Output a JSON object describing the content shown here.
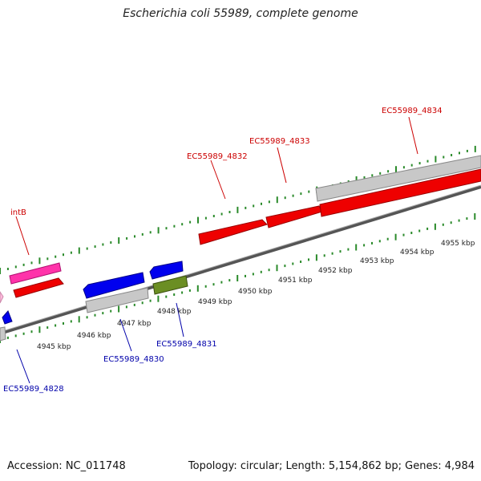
{
  "title": "Escherichia coli 55989, complete genome",
  "footer": {
    "accession": "Accession: NC_011748",
    "info": "Topology: circular; Length: 5,154,862 bp; Genes: 4,984"
  },
  "colors": {
    "red_label": "#cc0000",
    "blue_label": "#0000aa",
    "tick_green": "#2a8a2a"
  },
  "scale_labels": [
    "4945 kbp",
    "4946 kbp",
    "4947 kbp",
    "4948 kbp",
    "4949 kbp",
    "4950 kbp",
    "4951 kbp",
    "4952 kbp",
    "4953 kbp",
    "4954 kbp",
    "4955 kbp"
  ],
  "gene_labels": {
    "intB": "intB",
    "ec4832": "EC55989_4832",
    "ec4833": "EC55989_4833",
    "ec4834": "EC55989_4834",
    "ec4828": "EC55989_4828",
    "ec4830": "EC55989_4830",
    "ec4831": "EC55989_4831"
  }
}
